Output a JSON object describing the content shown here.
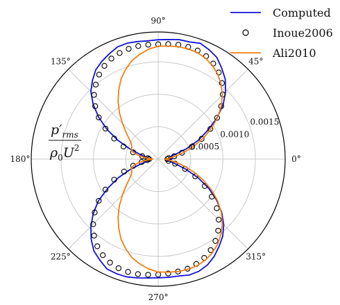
{
  "chart_data": {
    "type": "polar-line",
    "angle_unit": "degrees",
    "angle_ticks": [
      "0°",
      "45°",
      "90°",
      "135°",
      "180°",
      "225°",
      "270°",
      "315°"
    ],
    "radial_ticks": [
      "0.0005",
      "0.0010",
      "0.0015"
    ],
    "radial_tick_values": [
      0.0005,
      0.001,
      0.0015
    ],
    "rlim": [
      0,
      0.00196
    ],
    "grid": true,
    "legend_position": "top-right",
    "ylabel": {
      "numerator": "p′",
      "subscript": "rms",
      "denominator": "ρ",
      "den_subscript": "0",
      "den_main": "U",
      "den_sup": "2"
    },
    "series": [
      {
        "name": "Computed",
        "color": "#1010d8",
        "style": "line",
        "theta": [
          0,
          5,
          10,
          15,
          20,
          25,
          30,
          35,
          40,
          45,
          50,
          55,
          60,
          65,
          70,
          75,
          80,
          85,
          90,
          95,
          100,
          105,
          110,
          115,
          120,
          125,
          130,
          135,
          140,
          145,
          150,
          155,
          160,
          165,
          170,
          175,
          180,
          185,
          190,
          195,
          200,
          205,
          210,
          215,
          220,
          225,
          230,
          235,
          240,
          245,
          250,
          255,
          260,
          265,
          270,
          275,
          280,
          285,
          290,
          295,
          300,
          305,
          310,
          315,
          320,
          325,
          330,
          335,
          340,
          345,
          350,
          355,
          360
        ],
        "r": [
          0.00022,
          0.00016,
          0.00018,
          0.00026,
          0.00046,
          0.00068,
          0.00088,
          0.00111,
          0.00131,
          0.00147,
          0.00161,
          0.00171,
          0.00181,
          0.00186,
          0.0019,
          0.00187,
          0.00187,
          0.00185,
          0.00184,
          0.00183,
          0.00184,
          0.00185,
          0.00184,
          0.00179,
          0.00174,
          0.00168,
          0.00158,
          0.00147,
          0.00131,
          0.00112,
          0.00091,
          0.00069,
          0.00047,
          0.0003,
          0.0002,
          0.00013,
          0.00012,
          0.00012,
          0.00016,
          0.00026,
          0.00045,
          0.00068,
          0.0009,
          0.00113,
          0.00131,
          0.00147,
          0.00161,
          0.00173,
          0.0018,
          0.00187,
          0.00188,
          0.00188,
          0.00186,
          0.00184,
          0.00183,
          0.00183,
          0.00183,
          0.00185,
          0.00184,
          0.0018,
          0.00173,
          0.00164,
          0.00155,
          0.00143,
          0.00128,
          0.0011,
          0.0009,
          0.00068,
          0.00045,
          0.00027,
          0.00017,
          0.00011,
          0.00022
        ]
      },
      {
        "name": "Inoue2006",
        "color": "#000000",
        "style": "markers",
        "theta": [
          0,
          5,
          10,
          15,
          20,
          25,
          30,
          35,
          40,
          45,
          50,
          55,
          60,
          65,
          70,
          75,
          80,
          85,
          90,
          95,
          100,
          105,
          110,
          115,
          120,
          125,
          130,
          135,
          140,
          145,
          150,
          155,
          160,
          165,
          170,
          175,
          180,
          185,
          190,
          195,
          200,
          205,
          210,
          215,
          220,
          225,
          230,
          235,
          240,
          245,
          250,
          255,
          260,
          265,
          270,
          275,
          280,
          285,
          290,
          295,
          300,
          305,
          310,
          315,
          320,
          325,
          330,
          335,
          340,
          345,
          350
        ],
        "r": [
          0.00014,
          0.00016,
          0.00025,
          0.00038,
          0.00055,
          0.00074,
          0.00093,
          0.00111,
          0.00127,
          0.00141,
          0.00153,
          0.00163,
          0.0017,
          0.00175,
          0.00178,
          0.00179,
          0.00179,
          0.00178,
          0.00177,
          0.00177,
          0.00177,
          0.00176,
          0.00174,
          0.00171,
          0.00166,
          0.00159,
          0.0015,
          0.0014,
          0.00127,
          0.00112,
          0.00094,
          0.00075,
          0.00057,
          0.0004,
          0.00025,
          0.00016,
          0.00014,
          0.00017,
          0.00026,
          0.0004,
          0.00056,
          0.00075,
          0.00094,
          0.00112,
          0.00128,
          0.00142,
          0.00154,
          0.00164,
          0.00171,
          0.00176,
          0.00179,
          0.0018,
          0.0018,
          0.00179,
          0.00178,
          0.00177,
          0.00176,
          0.00175,
          0.00172,
          0.00168,
          0.00162,
          0.00154,
          0.00144,
          0.00132,
          0.00118,
          0.00101,
          0.00083,
          0.00063,
          0.00044,
          0.00027,
          0.00016
        ]
      },
      {
        "name": "Ali2010",
        "color": "#f08010",
        "style": "line",
        "theta": [
          0,
          5,
          10,
          15,
          20,
          25,
          30,
          35,
          40,
          45,
          50,
          55,
          60,
          65,
          70,
          75,
          80,
          85,
          90,
          95,
          100,
          105,
          110,
          115,
          120,
          125,
          130,
          135,
          140,
          145,
          150,
          155,
          160,
          165,
          170,
          175,
          180,
          185,
          190,
          195,
          200,
          205,
          210,
          215,
          220,
          225,
          230,
          235,
          240,
          245,
          250,
          255,
          260,
          265,
          270,
          275,
          280,
          285,
          290,
          295,
          300,
          305,
          310,
          315,
          320,
          325,
          330,
          335,
          340,
          345,
          350,
          355,
          360
        ],
        "r": [
          0.0001,
          0.00017,
          0.00028,
          0.00042,
          0.00059,
          0.00077,
          0.00095,
          0.00112,
          0.00127,
          0.0014,
          0.00151,
          0.0016,
          0.00167,
          0.00172,
          0.00175,
          0.00176,
          0.00176,
          0.00175,
          0.00174,
          0.0017,
          0.00164,
          0.00157,
          0.00147,
          0.00136,
          0.00122,
          0.00108,
          0.00093,
          0.00078,
          0.00065,
          0.00055,
          0.00048,
          0.00045,
          0.00044,
          0.0004,
          0.0003,
          0.00018,
          8e-05,
          0.00018,
          0.0003,
          0.0004,
          0.00044,
          0.00045,
          0.00048,
          0.00055,
          0.00065,
          0.00078,
          0.00093,
          0.00108,
          0.00122,
          0.00136,
          0.00147,
          0.00157,
          0.00164,
          0.0017,
          0.00174,
          0.00175,
          0.00176,
          0.00176,
          0.00175,
          0.00172,
          0.00167,
          0.0016,
          0.00151,
          0.0014,
          0.00127,
          0.00112,
          0.00095,
          0.00077,
          0.00059,
          0.00042,
          0.00028,
          0.00017,
          0.0001
        ]
      }
    ]
  }
}
